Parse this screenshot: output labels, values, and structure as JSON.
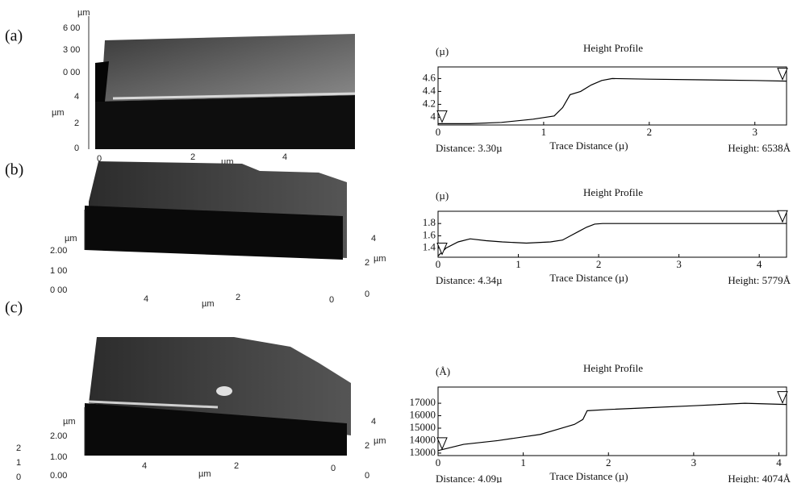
{
  "panels": [
    {
      "label": "(a)",
      "afm_texts": [
        "µm",
        "6 00",
        "3 00",
        "0 00",
        "4",
        "µm",
        "2",
        "0",
        "0",
        "2",
        "µm",
        "4"
      ]
    },
    {
      "label": "(b)",
      "afm_texts": [
        "µm",
        "2.00",
        "1 00",
        "0 00",
        "4",
        "µm",
        "2",
        "0",
        "4",
        "2",
        "µm",
        "0"
      ]
    },
    {
      "label": "(c)",
      "afm_texts": [
        "µm",
        "2.00",
        "1.00",
        "0.00",
        "2",
        "1",
        "0",
        "4",
        "µm",
        "2",
        "0",
        "4",
        "2",
        "µm",
        "0"
      ]
    }
  ],
  "chart_data": [
    {
      "type": "line",
      "title": "Height Profile",
      "y_label": "(µ)",
      "x_label": "Trace Distance (µ)",
      "annotations": [
        "Distance: 3.30µ",
        "Height: 6538Å"
      ],
      "color": "#000000",
      "x": [
        0,
        0.3,
        0.6,
        0.9,
        1.1,
        1.18,
        1.25,
        1.35,
        1.45,
        1.55,
        1.65,
        2.0,
        2.5,
        3.0,
        3.3
      ],
      "values": [
        3.9,
        3.9,
        3.92,
        3.97,
        4.02,
        4.15,
        4.35,
        4.4,
        4.5,
        4.57,
        4.6,
        4.59,
        4.58,
        4.57,
        4.56
      ],
      "xlim": [
        0,
        3.3
      ],
      "ylim": [
        3.88,
        4.78
      ],
      "xticks": [
        0,
        1,
        2,
        3
      ],
      "yticks": [
        4,
        4.2,
        4.4,
        4.6
      ]
    },
    {
      "type": "line",
      "title": "Height Profile",
      "y_label": "(µ)",
      "x_label": "Trace Distance (µ)",
      "annotations": [
        "Distance: 4.34µ",
        "Height: 5779Å"
      ],
      "color": "#000000",
      "x": [
        0,
        0.1,
        0.25,
        0.4,
        0.6,
        0.8,
        1.1,
        1.4,
        1.55,
        1.65,
        1.75,
        1.85,
        1.95,
        2.05,
        3.0,
        4.0,
        4.34
      ],
      "values": [
        1.27,
        1.4,
        1.5,
        1.55,
        1.52,
        1.5,
        1.48,
        1.5,
        1.53,
        1.6,
        1.67,
        1.74,
        1.79,
        1.8,
        1.8,
        1.8,
        1.8
      ],
      "xlim": [
        0,
        4.34
      ],
      "ylim": [
        1.25,
        2.0
      ],
      "xticks": [
        0,
        1,
        2,
        3,
        4
      ],
      "yticks": [
        1.4,
        1.6,
        1.8
      ]
    },
    {
      "type": "line",
      "title": "Height Profile",
      "y_label": "(Å)",
      "x_label": "Trace Distance (µ)",
      "annotations": [
        "Distance: 4.09µ",
        "Height: 4074Å"
      ],
      "color": "#000000",
      "x": [
        0,
        0.3,
        0.7,
        1.0,
        1.2,
        1.4,
        1.6,
        1.7,
        1.75,
        2.0,
        2.5,
        3.0,
        3.6,
        4.09
      ],
      "values": [
        13200,
        13700,
        14000,
        14300,
        14500,
        14900,
        15300,
        15700,
        16400,
        16500,
        16650,
        16800,
        17000,
        16900
      ],
      "xlim": [
        0,
        4.09
      ],
      "ylim": [
        12800,
        18300
      ],
      "xticks": [
        0,
        1,
        2,
        3,
        4
      ],
      "yticks": [
        13000,
        14000,
        15000,
        16000,
        17000
      ]
    }
  ]
}
